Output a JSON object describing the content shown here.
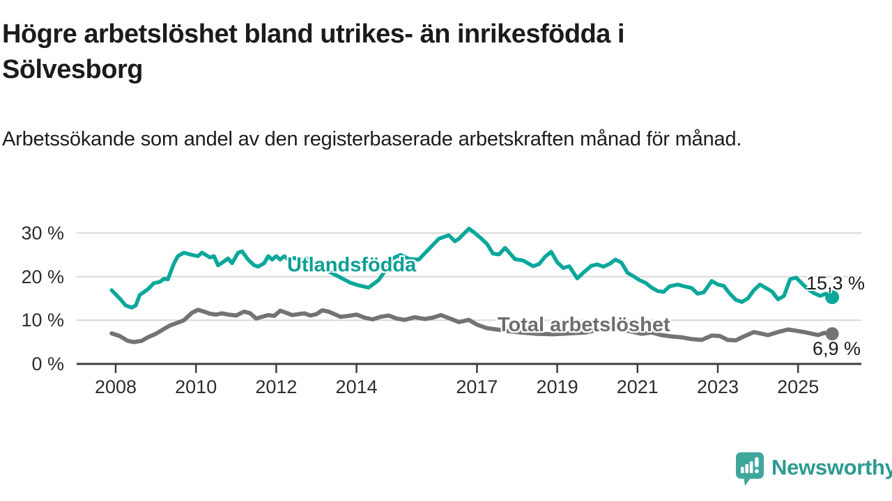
{
  "chart_data": {
    "type": "line",
    "title": "Högre arbetslöshet bland utrikes- än inrikesfödda i Sölvesborg",
    "subtitle": "Arbetssökande som andel av den registerbaserade arbetskraften månad för månad.",
    "unit": "%",
    "grid": true,
    "legend_position": "inline-labels-on-chart",
    "ylim": [
      0,
      32
    ],
    "xlim": [
      2007.8,
      2026.5
    ],
    "y_ticks": [
      {
        "label": "0 %",
        "value": 0
      },
      {
        "label": "10 %",
        "value": 10
      },
      {
        "label": "20 %",
        "value": 20
      },
      {
        "label": "30 %",
        "value": 30
      }
    ],
    "x_tick_years": [
      2008,
      2010,
      2012,
      2014,
      2017,
      2019,
      2021,
      2023,
      2025
    ],
    "x_tick_labels": [
      "2008",
      "2010",
      "2012",
      "2014",
      "2017",
      "2019",
      "2021",
      "2023",
      "2025"
    ],
    "colors": {
      "grid": "#d9d9d9",
      "axis": "#3d3d3d",
      "tick_text": "#2d2d2d"
    },
    "series": [
      {
        "name": "Utlandsfödda",
        "color": "#0ba79b",
        "end_label": "15,3 %",
        "end_value": 15.3,
        "points": [
          [
            2007.9,
            16.9
          ],
          [
            2008.1,
            15.0
          ],
          [
            2008.25,
            13.4
          ],
          [
            2008.4,
            12.9
          ],
          [
            2008.5,
            13.4
          ],
          [
            2008.6,
            15.8
          ],
          [
            2008.8,
            17.1
          ],
          [
            2008.95,
            18.5
          ],
          [
            2009.1,
            18.8
          ],
          [
            2009.2,
            19.5
          ],
          [
            2009.3,
            19.4
          ],
          [
            2009.45,
            23.0
          ],
          [
            2009.55,
            24.7
          ],
          [
            2009.7,
            25.5
          ],
          [
            2009.9,
            25.0
          ],
          [
            2010.05,
            24.7
          ],
          [
            2010.15,
            25.5
          ],
          [
            2010.35,
            24.4
          ],
          [
            2010.45,
            24.7
          ],
          [
            2010.55,
            22.6
          ],
          [
            2010.7,
            23.5
          ],
          [
            2010.8,
            24.2
          ],
          [
            2010.9,
            23.1
          ],
          [
            2011.05,
            25.5
          ],
          [
            2011.15,
            25.8
          ],
          [
            2011.3,
            23.9
          ],
          [
            2011.45,
            22.6
          ],
          [
            2011.55,
            22.3
          ],
          [
            2011.7,
            23.1
          ],
          [
            2011.8,
            24.7
          ],
          [
            2011.9,
            23.9
          ],
          [
            2012.0,
            24.7
          ],
          [
            2012.1,
            23.9
          ],
          [
            2012.2,
            24.7
          ],
          [
            2012.3,
            23.9
          ],
          [
            2012.45,
            24.3
          ],
          [
            2012.6,
            23.7
          ],
          [
            2012.75,
            24.2
          ],
          [
            2012.9,
            23.5
          ],
          [
            2013.1,
            22.3
          ],
          [
            2013.35,
            21.0
          ],
          [
            2013.6,
            19.8
          ],
          [
            2013.85,
            18.6
          ],
          [
            2014.05,
            18.0
          ],
          [
            2014.3,
            17.5
          ],
          [
            2014.55,
            19.2
          ],
          [
            2014.75,
            21.8
          ],
          [
            2014.95,
            24.4
          ],
          [
            2015.1,
            25.0
          ],
          [
            2015.3,
            24.1
          ],
          [
            2015.55,
            23.9
          ],
          [
            2015.85,
            26.8
          ],
          [
            2016.05,
            28.7
          ],
          [
            2016.3,
            29.5
          ],
          [
            2016.45,
            28.1
          ],
          [
            2016.55,
            28.7
          ],
          [
            2016.8,
            31.0
          ],
          [
            2016.95,
            30.0
          ],
          [
            2017.1,
            28.8
          ],
          [
            2017.25,
            27.5
          ],
          [
            2017.4,
            25.3
          ],
          [
            2017.55,
            25.1
          ],
          [
            2017.7,
            26.6
          ],
          [
            2017.95,
            24.0
          ],
          [
            2018.15,
            23.7
          ],
          [
            2018.4,
            22.4
          ],
          [
            2018.55,
            22.9
          ],
          [
            2018.7,
            24.6
          ],
          [
            2018.85,
            25.7
          ],
          [
            2019.0,
            23.3
          ],
          [
            2019.15,
            22.0
          ],
          [
            2019.3,
            22.4
          ],
          [
            2019.5,
            19.6
          ],
          [
            2019.65,
            20.9
          ],
          [
            2019.85,
            22.5
          ],
          [
            2020.0,
            22.8
          ],
          [
            2020.15,
            22.3
          ],
          [
            2020.3,
            22.9
          ],
          [
            2020.45,
            23.9
          ],
          [
            2020.6,
            23.2
          ],
          [
            2020.75,
            20.9
          ],
          [
            2020.9,
            20.1
          ],
          [
            2021.05,
            19.2
          ],
          [
            2021.2,
            18.6
          ],
          [
            2021.35,
            17.5
          ],
          [
            2021.5,
            16.7
          ],
          [
            2021.65,
            16.5
          ],
          [
            2021.8,
            17.8
          ],
          [
            2022.0,
            18.2
          ],
          [
            2022.2,
            17.7
          ],
          [
            2022.35,
            17.4
          ],
          [
            2022.5,
            16.1
          ],
          [
            2022.65,
            16.4
          ],
          [
            2022.85,
            19.0
          ],
          [
            2023.0,
            18.2
          ],
          [
            2023.15,
            17.9
          ],
          [
            2023.3,
            16.1
          ],
          [
            2023.45,
            14.7
          ],
          [
            2023.6,
            14.2
          ],
          [
            2023.75,
            15.0
          ],
          [
            2023.9,
            16.9
          ],
          [
            2024.05,
            18.2
          ],
          [
            2024.2,
            17.4
          ],
          [
            2024.35,
            16.6
          ],
          [
            2024.5,
            14.8
          ],
          [
            2024.65,
            15.6
          ],
          [
            2024.8,
            19.4
          ],
          [
            2024.95,
            19.8
          ],
          [
            2025.1,
            18.4
          ],
          [
            2025.25,
            17.1
          ],
          [
            2025.4,
            16.2
          ],
          [
            2025.55,
            15.6
          ],
          [
            2025.7,
            16.1
          ],
          [
            2025.85,
            15.3
          ]
        ]
      },
      {
        "name": "Total arbetslöshet",
        "color": "#737373",
        "end_label": "6,9 %",
        "end_value": 6.9,
        "points": [
          [
            2007.9,
            7.0
          ],
          [
            2008.1,
            6.4
          ],
          [
            2008.3,
            5.3
          ],
          [
            2008.45,
            5.0
          ],
          [
            2008.65,
            5.3
          ],
          [
            2008.8,
            6.1
          ],
          [
            2009.0,
            6.9
          ],
          [
            2009.2,
            8.0
          ],
          [
            2009.35,
            8.8
          ],
          [
            2009.5,
            9.3
          ],
          [
            2009.7,
            10.0
          ],
          [
            2009.9,
            11.7
          ],
          [
            2010.05,
            12.4
          ],
          [
            2010.2,
            12.0
          ],
          [
            2010.35,
            11.5
          ],
          [
            2010.5,
            11.3
          ],
          [
            2010.65,
            11.6
          ],
          [
            2010.8,
            11.3
          ],
          [
            2011.0,
            11.1
          ],
          [
            2011.2,
            12.0
          ],
          [
            2011.35,
            11.6
          ],
          [
            2011.5,
            10.4
          ],
          [
            2011.65,
            10.8
          ],
          [
            2011.8,
            11.2
          ],
          [
            2011.95,
            11.0
          ],
          [
            2012.1,
            12.2
          ],
          [
            2012.25,
            11.7
          ],
          [
            2012.4,
            11.2
          ],
          [
            2012.55,
            11.4
          ],
          [
            2012.7,
            11.6
          ],
          [
            2012.85,
            11.1
          ],
          [
            2013.0,
            11.4
          ],
          [
            2013.15,
            12.3
          ],
          [
            2013.3,
            12.0
          ],
          [
            2013.45,
            11.4
          ],
          [
            2013.6,
            10.8
          ],
          [
            2013.8,
            11.0
          ],
          [
            2014.0,
            11.3
          ],
          [
            2014.2,
            10.6
          ],
          [
            2014.4,
            10.2
          ],
          [
            2014.6,
            10.8
          ],
          [
            2014.8,
            11.1
          ],
          [
            2015.0,
            10.4
          ],
          [
            2015.2,
            10.1
          ],
          [
            2015.45,
            10.7
          ],
          [
            2015.7,
            10.3
          ],
          [
            2015.9,
            10.6
          ],
          [
            2016.1,
            11.2
          ],
          [
            2016.3,
            10.5
          ],
          [
            2016.55,
            9.6
          ],
          [
            2016.8,
            10.1
          ],
          [
            2017.0,
            9.0
          ],
          [
            2017.25,
            8.2
          ],
          [
            2017.5,
            7.9
          ],
          [
            2017.8,
            7.5
          ],
          [
            2018.1,
            7.2
          ],
          [
            2018.5,
            6.9
          ],
          [
            2018.9,
            6.8
          ],
          [
            2019.3,
            7.0
          ],
          [
            2019.7,
            7.2
          ],
          [
            2020.0,
            7.8
          ],
          [
            2020.3,
            8.2
          ],
          [
            2020.6,
            7.9
          ],
          [
            2020.9,
            7.3
          ],
          [
            2021.1,
            6.9
          ],
          [
            2021.35,
            7.2
          ],
          [
            2021.6,
            6.6
          ],
          [
            2021.85,
            6.3
          ],
          [
            2022.1,
            6.1
          ],
          [
            2022.35,
            5.7
          ],
          [
            2022.6,
            5.5
          ],
          [
            2022.85,
            6.5
          ],
          [
            2023.05,
            6.4
          ],
          [
            2023.25,
            5.5
          ],
          [
            2023.45,
            5.4
          ],
          [
            2023.65,
            6.3
          ],
          [
            2023.9,
            7.3
          ],
          [
            2024.05,
            7.0
          ],
          [
            2024.25,
            6.6
          ],
          [
            2024.5,
            7.3
          ],
          [
            2024.75,
            7.9
          ],
          [
            2024.95,
            7.6
          ],
          [
            2025.15,
            7.3
          ],
          [
            2025.35,
            6.9
          ],
          [
            2025.5,
            6.6
          ],
          [
            2025.65,
            7.1
          ],
          [
            2025.85,
            6.9
          ]
        ]
      }
    ]
  },
  "footer": {
    "brand": "Newsworthy",
    "logo_color": "#3fa79c",
    "wordmark_color": "#2d9a90"
  }
}
